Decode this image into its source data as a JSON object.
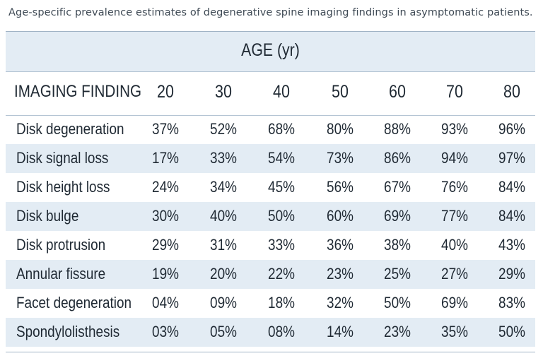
{
  "caption": "Age-specific prevalence estimates of degenerative spine imaging findings in asymptomatic patients.",
  "table": {
    "group_header": "AGE (yr)",
    "first_column_header": "IMAGING FINDING",
    "age_columns": [
      "20",
      "30",
      "40",
      "50",
      "60",
      "70",
      "80"
    ],
    "rows": [
      {
        "finding": "Disk degeneration",
        "values": [
          "37%",
          "52%",
          "68%",
          "80%",
          "88%",
          "93%",
          "96%"
        ]
      },
      {
        "finding": "Disk signal loss",
        "values": [
          "17%",
          "33%",
          "54%",
          "73%",
          "86%",
          "94%",
          "97%"
        ]
      },
      {
        "finding": "Disk height loss",
        "values": [
          "24%",
          "34%",
          "45%",
          "56%",
          "67%",
          "76%",
          "84%"
        ]
      },
      {
        "finding": "Disk bulge",
        "values": [
          "30%",
          "40%",
          "50%",
          "60%",
          "69%",
          "77%",
          "84%"
        ]
      },
      {
        "finding": "Disk protrusion",
        "values": [
          "29%",
          "31%",
          "33%",
          "36%",
          "38%",
          "40%",
          "43%"
        ]
      },
      {
        "finding": "Annular fissure",
        "values": [
          "19%",
          "20%",
          "22%",
          "23%",
          "25%",
          "27%",
          "29%"
        ]
      },
      {
        "finding": "Facet degeneration",
        "values": [
          "04%",
          "09%",
          "18%",
          "32%",
          "50%",
          "69%",
          "83%"
        ]
      },
      {
        "finding": "Spondylolisthesis",
        "values": [
          "03%",
          "05%",
          "08%",
          "14%",
          "23%",
          "35%",
          "50%"
        ]
      }
    ]
  },
  "colors": {
    "band_fill": "#e3ecf4",
    "text": "#1f2933",
    "caption_text": "#3f4a55"
  }
}
